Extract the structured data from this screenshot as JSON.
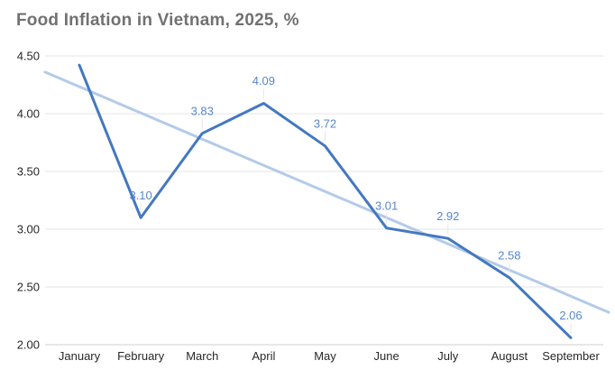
{
  "title": "Food Inflation in Vietnam, 2025, %",
  "colors": {
    "title_text": "#717171",
    "series_line": "#4478c0",
    "trend_line": "#b3cbe9",
    "data_label_text": "#5787cb",
    "gridline": "#e4e4e4",
    "axis_line": "#cfcfcf",
    "tick_label_text": "#282828",
    "leader_line": "#e4e4e4",
    "background": "#ffffff"
  },
  "chart_data": {
    "type": "line",
    "title": "Food Inflation in Vietnam, 2025, %",
    "categories": [
      "January",
      "February",
      "March",
      "April",
      "May",
      "June",
      "July",
      "August",
      "September"
    ],
    "series": [
      {
        "name": "food-inflation-percent",
        "values": [
          4.42,
          3.1,
          3.83,
          4.09,
          3.72,
          3.01,
          2.92,
          2.58,
          2.06
        ],
        "point_labels": [
          "",
          "3.10",
          "3.83",
          "4.09",
          "3.72",
          "3.01",
          "2.92",
          "2.58",
          "2.06"
        ]
      }
    ],
    "trendline": {
      "type": "linear",
      "start_value": 4.36,
      "end_value": 2.28
    },
    "ylim": [
      2.0,
      4.5
    ],
    "ytick_labels": [
      "4.50",
      "4.00",
      "3.50",
      "3.00",
      "2.50",
      "2.00"
    ],
    "grid": "horizontal-only",
    "legend": "none",
    "xlabel": "",
    "ylabel": ""
  }
}
